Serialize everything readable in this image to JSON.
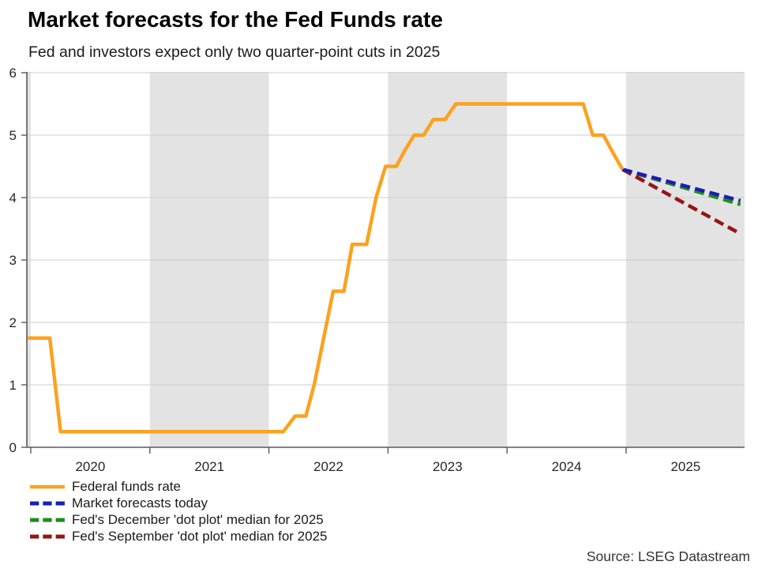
{
  "header": {
    "title": "Market forecasts for the Fed Funds rate",
    "subtitle": "Fed and investors expect only two quarter-point cuts in 2025"
  },
  "source": "Source: LSEG Datastream",
  "chart_data": {
    "type": "line",
    "title": "Market forecasts for the Fed Funds rate",
    "subtitle": "Fed and investors expect only two quarter-point cuts in 2025",
    "xlabel": "",
    "ylabel": "",
    "x_range": [
      2019.967,
      2025.995
    ],
    "ylim": [
      0,
      6
    ],
    "grid": true,
    "legend_position": "bottom-left",
    "colors": {
      "band": "#e3e3e3",
      "gridline": "#cdcdcd",
      "axis": "#5a5a5a",
      "tick_text": "#262626"
    },
    "shaded_year_bands": [
      [
        2019.967,
        2020
      ],
      [
        2021,
        2022
      ],
      [
        2023,
        2024
      ],
      [
        2025,
        2025.995
      ]
    ],
    "x_axis": {
      "tick_years": [
        2020,
        2021,
        2022,
        2023,
        2024,
        2025
      ],
      "labels": [
        {
          "label": "2020",
          "center": 2020.5
        },
        {
          "label": "2021",
          "center": 2021.5
        },
        {
          "label": "2022",
          "center": 2022.5
        },
        {
          "label": "2023",
          "center": 2023.5
        },
        {
          "label": "2024",
          "center": 2024.5
        },
        {
          "label": "2025",
          "center": 2025.5
        }
      ]
    },
    "y_axis": {
      "ticks": [
        0,
        1,
        2,
        3,
        4,
        5,
        6
      ]
    },
    "series": [
      {
        "name": "Federal funds rate",
        "color": "#fba21e",
        "style": "solid",
        "points": [
          [
            2019.975,
            1.75
          ],
          [
            2020.16,
            1.75
          ],
          [
            2020.25,
            0.25
          ],
          [
            2022.12,
            0.25
          ],
          [
            2022.22,
            0.5
          ],
          [
            2022.31,
            0.5
          ],
          [
            2022.38,
            1.0
          ],
          [
            2022.46,
            1.75
          ],
          [
            2022.54,
            2.5
          ],
          [
            2022.63,
            2.5
          ],
          [
            2022.7,
            3.25
          ],
          [
            2022.82,
            3.25
          ],
          [
            2022.9,
            4.0
          ],
          [
            2022.98,
            4.5
          ],
          [
            2023.07,
            4.5
          ],
          [
            2023.14,
            4.75
          ],
          [
            2023.22,
            5.0
          ],
          [
            2023.3,
            5.0
          ],
          [
            2023.38,
            5.25
          ],
          [
            2023.48,
            5.25
          ],
          [
            2023.57,
            5.5
          ],
          [
            2024.64,
            5.5
          ],
          [
            2024.72,
            5.0
          ],
          [
            2024.81,
            5.0
          ],
          [
            2024.88,
            4.75
          ],
          [
            2024.97,
            4.45
          ]
        ]
      },
      {
        "name": "Market forecasts today",
        "color": "#1c1cb4",
        "style": "dashed",
        "points": [
          [
            2024.97,
            4.45
          ],
          [
            2025.96,
            3.95
          ]
        ]
      },
      {
        "name": "Fed's December 'dot plot' median for 2025",
        "color": "#1e8c1e",
        "style": "dashed",
        "points": [
          [
            2024.97,
            4.45
          ],
          [
            2025.96,
            3.89
          ]
        ]
      },
      {
        "name": "Fed's September 'dot plot' median for 2025",
        "color": "#971414",
        "style": "dashed",
        "points": [
          [
            2024.97,
            4.45
          ],
          [
            2025.96,
            3.42
          ]
        ]
      }
    ]
  }
}
